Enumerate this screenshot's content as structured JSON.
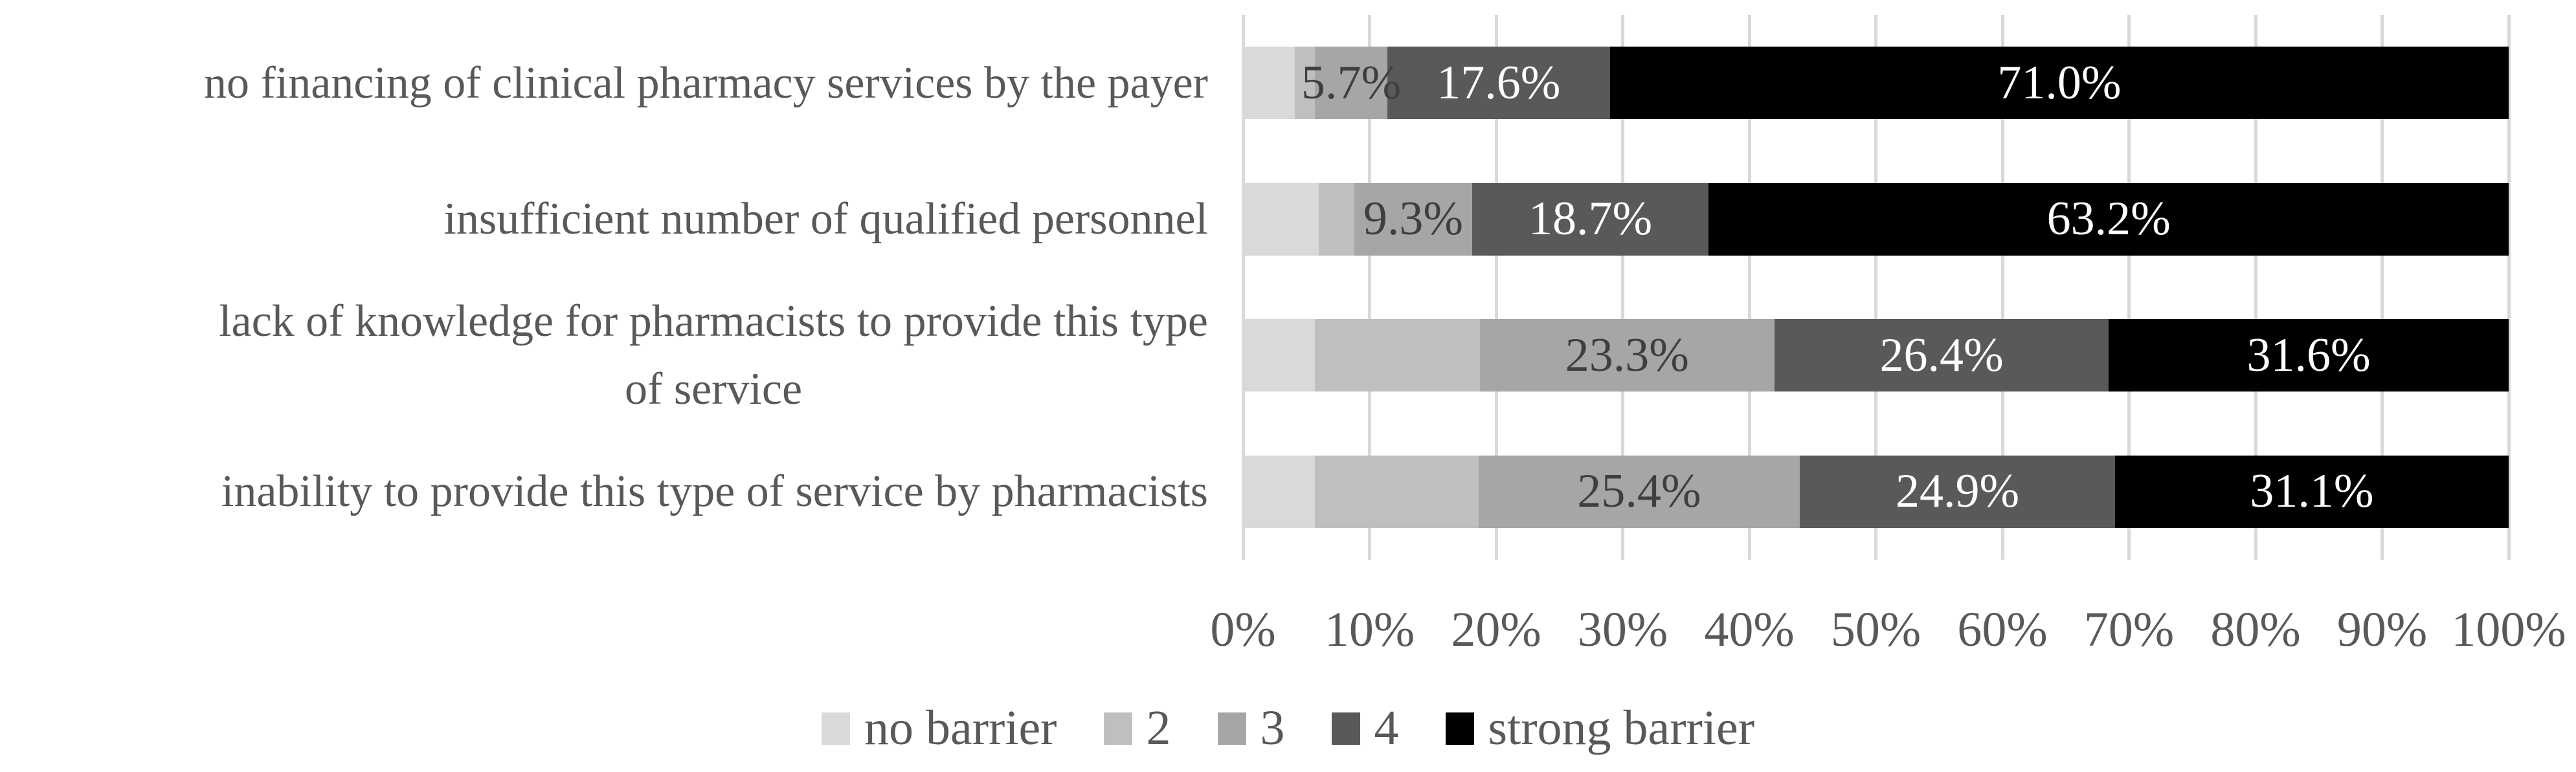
{
  "chart_data": {
    "type": "bar",
    "orientation": "horizontal",
    "stacked": true,
    "value_unit": "percent",
    "categories": [
      "no financing of clinical pharmacy services by the payer",
      "insufficient number of qualified personnel",
      "lack of knowledge for pharmacists to provide this type\nof service",
      "inability to provide this type of service by pharmacists"
    ],
    "series": [
      {
        "name": "no barrier",
        "color": "#d9d9d9",
        "label_color": "#3f3f3f",
        "values": [
          4.1,
          6.0,
          5.7,
          5.7
        ],
        "labels": [
          "",
          "",
          "",
          ""
        ]
      },
      {
        "name": "2",
        "color": "#bfbfbf",
        "label_color": "#3f3f3f",
        "values": [
          1.6,
          2.8,
          13.0,
          12.9
        ],
        "labels": [
          "",
          "",
          "",
          ""
        ]
      },
      {
        "name": "3",
        "color": "#a6a6a6",
        "label_color": "#3f3f3f",
        "values": [
          5.7,
          9.3,
          23.3,
          25.4
        ],
        "labels": [
          "5.7%",
          "9.3%",
          "23.3%",
          "25.4%"
        ]
      },
      {
        "name": "4",
        "color": "#595959",
        "label_color": "#ffffff",
        "values": [
          17.6,
          18.7,
          26.4,
          24.9
        ],
        "labels": [
          "17.6%",
          "18.7%",
          "26.4%",
          "24.9%"
        ]
      },
      {
        "name": "strong barrier",
        "color": "#000000",
        "label_color": "#ffffff",
        "values": [
          71.0,
          63.2,
          31.6,
          31.1
        ],
        "labels": [
          "71.0%",
          "63.2%",
          "31.6%",
          "31.1%"
        ]
      }
    ],
    "x_axis": {
      "min": 0,
      "max": 100,
      "tick_labels": [
        "0%",
        "10%",
        "20%",
        "30%",
        "40%",
        "50%",
        "60%",
        "70%",
        "80%",
        "90%",
        "100%"
      ]
    },
    "legend": {
      "position": "bottom",
      "items": [
        "no barrier",
        "2",
        "3",
        "4",
        "strong barrier"
      ]
    },
    "grid": {
      "show": true,
      "color": "#d9d9d9"
    }
  },
  "styles": {
    "background": "#ffffff",
    "axis_text_color": "#595959",
    "category_text_color": "#595959",
    "legend_text_color": "#595959"
  }
}
